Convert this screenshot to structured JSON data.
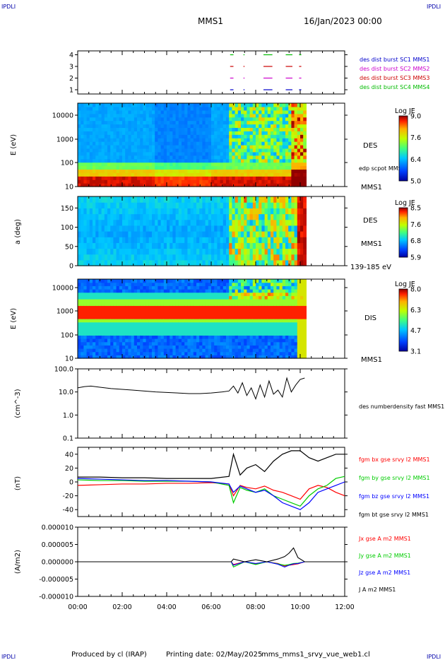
{
  "header": {
    "corner_labels": [
      "IPDLI",
      "IPDLI",
      "IPDLI",
      "IPDLI"
    ],
    "spacecraft": "MMS1",
    "date": "16/Jan/2023 00:00"
  },
  "footer": {
    "produced_by": "Produced by cl (IRAP)",
    "printing_date": "Printing date: 02/May/2025",
    "filename": "mms_mms1_srvy_vue_web1.cl"
  },
  "time_axis": {
    "range_hours": [
      0,
      12
    ],
    "tick_labels": [
      "00:00",
      "02:00",
      "04:00",
      "06:00",
      "08:00",
      "10:00",
      "12:00"
    ]
  },
  "colors": {
    "mms1": "#0000cc",
    "mms2": "#cc00cc",
    "mms3": "#cc0000",
    "mms4": "#00bb00",
    "bx": "#ff0000",
    "by": "#00cc00",
    "bz": "#0000ff",
    "bt": "#000000"
  },
  "chart_data": [
    {
      "id": "burst",
      "type": "scatter",
      "yticks": [
        "1",
        "2",
        "3",
        "4"
      ],
      "legend": [
        "des dist burst SC1 MMS1",
        "des dist burst SC2 MMS2",
        "des dist burst SC3 MMS3",
        "des dist burst SC4 MMS4"
      ],
      "intervals_hours": [
        [
          6.85,
          7.0
        ],
        [
          7.45,
          7.5
        ],
        [
          8.35,
          8.75
        ],
        [
          9.35,
          9.65
        ],
        [
          9.95,
          10.05
        ]
      ]
    },
    {
      "id": "des-energy",
      "type": "heatmap",
      "ylabel": "E (eV)",
      "yscale": "log",
      "yticks": [
        "10",
        "100",
        "1000",
        "10000"
      ],
      "instrument": "DES",
      "spacecraft_label": "MMS1",
      "overlay_label": "edp scpot MMS1",
      "colorbar": {
        "title": "Log JE",
        "min": 5.0,
        "max": 9.0,
        "ticks": [
          "9.0",
          "7.6",
          "6.4",
          "5.0"
        ]
      }
    },
    {
      "id": "des-pitch",
      "type": "heatmap",
      "ylabel": "a (deg)",
      "yticks": [
        "0",
        "50",
        "100",
        "150"
      ],
      "ylim": [
        0,
        180
      ],
      "instrument": "DES",
      "spacecraft_label": "MMS1",
      "energy_range": "139-185 eV",
      "colorbar": {
        "title": "Log JE",
        "min": 5.9,
        "max": 8.5,
        "ticks": [
          "8.5",
          "7.6",
          "6.8",
          "5.9"
        ]
      }
    },
    {
      "id": "dis-energy",
      "type": "heatmap",
      "ylabel": "E (eV)",
      "yscale": "log",
      "yticks": [
        "10",
        "100",
        "1000",
        "10000"
      ],
      "instrument": "DIS",
      "spacecraft_label": "MMS1",
      "colorbar": {
        "title": "Log JE",
        "min": 3.1,
        "max": 8.0,
        "ticks": [
          "8.0",
          "6.3",
          "4.7",
          "3.1"
        ]
      }
    },
    {
      "id": "density",
      "type": "line",
      "ylabel": "(cm^-3)",
      "yscale": "log",
      "ylim": [
        0.1,
        100
      ],
      "yticks": [
        "100.0",
        "10.0",
        "1.0",
        "0.1"
      ],
      "legend": [
        "des numberdensity fast MMS1"
      ],
      "x_hours": [
        0.0,
        0.3,
        0.6,
        1.0,
        1.5,
        2.0,
        2.5,
        3.0,
        3.5,
        4.0,
        4.5,
        5.0,
        5.5,
        6.0,
        6.5,
        6.8,
        7.0,
        7.2,
        7.4,
        7.6,
        7.8,
        8.0,
        8.2,
        8.4,
        8.6,
        8.8,
        9.0,
        9.2,
        9.4,
        9.6,
        9.8,
        10.0,
        10.2
      ],
      "y": [
        15,
        17,
        18,
        16,
        14,
        13,
        12,
        11,
        10,
        9.5,
        9,
        8.5,
        8.5,
        9,
        10,
        11,
        18,
        9,
        25,
        7,
        15,
        5,
        20,
        6,
        30,
        8,
        12,
        6,
        40,
        10,
        20,
        35,
        40
      ]
    },
    {
      "id": "bfield",
      "type": "line",
      "ylabel": "(nT)",
      "ylim": [
        -50,
        50
      ],
      "yticks": [
        "40",
        "20",
        "0",
        "-20",
        "-40"
      ],
      "x_hours": [
        0,
        1,
        2,
        3,
        4,
        5,
        6,
        6.8,
        7.0,
        7.3,
        7.6,
        8.0,
        8.4,
        8.8,
        9.2,
        9.6,
        10.0,
        10.4,
        10.8,
        11.2,
        11.6,
        12.0
      ],
      "series": [
        {
          "name": "fgm bx gse srvy l2 MMS1",
          "values": [
            -5,
            -4,
            -3,
            -3,
            -2,
            -2,
            -1,
            -3,
            -20,
            -5,
            -8,
            -10,
            -6,
            -12,
            -15,
            -20,
            -25,
            -10,
            -5,
            -8,
            -15,
            -20
          ]
        },
        {
          "name": "fgm by gse srvy l2 MMS1",
          "values": [
            3,
            2,
            2,
            1,
            1,
            1,
            0,
            -5,
            -30,
            -8,
            -12,
            -15,
            -10,
            -20,
            -25,
            -30,
            -35,
            -20,
            -10,
            -5,
            5,
            8
          ]
        },
        {
          "name": "fgm bz gse srvy l2 MMS1",
          "values": [
            5,
            4,
            3,
            2,
            2,
            1,
            0,
            -3,
            -15,
            -6,
            -10,
            -15,
            -12,
            -20,
            -30,
            -35,
            -40,
            -30,
            -15,
            -10,
            -5,
            0
          ]
        },
        {
          "name": "fgm bt gse srvy l2 MMS1",
          "values": [
            7,
            7,
            6,
            6,
            5,
            5,
            5,
            8,
            40,
            10,
            20,
            25,
            15,
            30,
            40,
            45,
            45,
            35,
            30,
            35,
            40,
            40
          ]
        }
      ]
    },
    {
      "id": "current",
      "type": "line",
      "ylabel": "(A/m2)",
      "ylim": [
        -1e-05,
        1e-05
      ],
      "yticks": [
        "0.000010",
        "0.000005",
        "0.000000",
        "-0.000005",
        "-0.000010"
      ],
      "x_hours": [
        0,
        2,
        4,
        6,
        6.9,
        7.0,
        7.5,
        8.0,
        8.5,
        9.0,
        9.3,
        9.5,
        9.7,
        9.9,
        10.2,
        11,
        12
      ],
      "series": [
        {
          "name": "Jx gse A m2 MMS1",
          "values": [
            0,
            0,
            0,
            0,
            0,
            -8e-07,
            0,
            -6e-07,
            0,
            -5e-07,
            -1.2e-06,
            -1e-06,
            -8e-07,
            -6e-07,
            0,
            0,
            0
          ]
        },
        {
          "name": "Jy gse A m2 MMS1",
          "values": [
            0,
            0,
            0,
            0,
            0,
            -1.5e-06,
            0,
            -8e-07,
            0,
            -6e-07,
            -1e-06,
            -8e-07,
            -5e-07,
            -4e-07,
            0,
            0,
            0
          ]
        },
        {
          "name": "Jz gse A m2 MMS1",
          "values": [
            0,
            0,
            0,
            0,
            0,
            -1e-06,
            0,
            -5e-07,
            0,
            -7e-07,
            -1.5e-06,
            -1e-06,
            -6e-07,
            -5e-07,
            0,
            0,
            0
          ]
        },
        {
          "name": "J A m2 MMS1",
          "values": [
            0,
            0,
            0,
            0,
            0,
            8e-07,
            0,
            6e-07,
            0,
            8e-07,
            1.5e-06,
            2.5e-06,
            4e-06,
            1.2e-06,
            0,
            0,
            0
          ]
        }
      ]
    }
  ]
}
